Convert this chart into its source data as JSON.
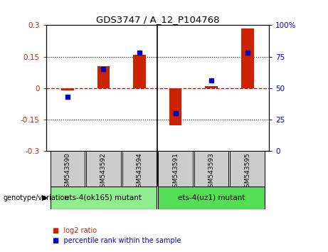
{
  "title": "GDS3747 / A_12_P104768",
  "categories": [
    "GSM543590",
    "GSM543592",
    "GSM543594",
    "GSM543591",
    "GSM543593",
    "GSM543595"
  ],
  "log2_ratio": [
    -0.01,
    0.105,
    0.16,
    -0.175,
    0.01,
    0.285
  ],
  "percentile_rank": [
    43,
    65,
    78,
    30,
    56,
    78
  ],
  "ylim_left": [
    -0.3,
    0.3
  ],
  "ylim_right": [
    0,
    100
  ],
  "yticks_left": [
    -0.3,
    -0.15,
    0.0,
    0.15,
    0.3
  ],
  "yticks_right": [
    0,
    25,
    50,
    75,
    100
  ],
  "bar_color": "#cc2200",
  "dot_color": "#0000cc",
  "zero_line_color": "#cc0000",
  "grid_color": "#000000",
  "group1_label": "ets-4(ok165) mutant",
  "group2_label": "ets-4(uz1) mutant",
  "group1_color": "#90ee90",
  "group2_color": "#55dd55",
  "genotype_label": "genotype/variation",
  "legend_bar_label": "log2 ratio",
  "legend_dot_label": "percentile rank within the sample",
  "background_color": "#ffffff",
  "plot_bg_color": "#ffffff",
  "bar_width": 0.35,
  "separator_x": 2.5,
  "xlim": [
    -0.6,
    5.6
  ]
}
